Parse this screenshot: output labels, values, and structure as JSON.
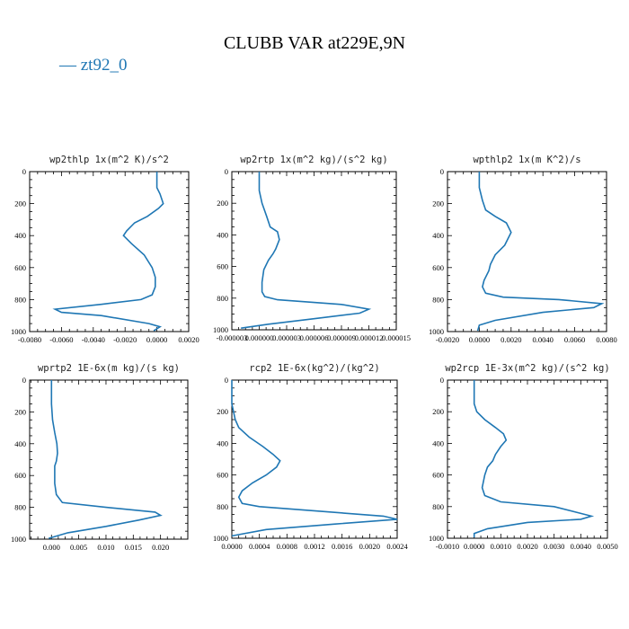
{
  "title": "CLUBB VAR at229E,9N",
  "legend_label": "— zt92_0",
  "colors": {
    "line": "#1f77b4"
  },
  "chart_data": [
    {
      "type": "line",
      "title": "wp2thlp  1x(m^2 K)/s^2",
      "xlim": [
        -0.008,
        0.002
      ],
      "ylim": [
        0,
        1000
      ],
      "y_inverted": true,
      "xticks": [
        -0.008,
        -0.006,
        -0.004,
        -0.002,
        0.0,
        0.002
      ],
      "xticklabels": [
        "-0.0080",
        "-0.0060",
        "-0.0040",
        "-0.0020",
        "0.0000",
        "0.0020"
      ],
      "yticks": [
        0,
        200,
        400,
        600,
        800,
        1000
      ],
      "yticklabels": [
        "0",
        "200",
        "400",
        "600",
        "800",
        "1000"
      ],
      "series": [
        {
          "x": [
            -0.0,
            -0.0,
            0.0002,
            0.0004,
            0.0001,
            -0.0006,
            -0.0014,
            -0.0019,
            -0.0021,
            -0.0016,
            -0.0008,
            -0.0003,
            -0.0001,
            -0.0001,
            -0.0003,
            -0.001,
            -0.0035,
            -0.0064,
            -0.006,
            -0.0035,
            -0.0005,
            0.0002,
            -0.0002
          ],
          "y": [
            0,
            100,
            140,
            200,
            230,
            280,
            320,
            370,
            400,
            450,
            520,
            600,
            660,
            720,
            770,
            800,
            830,
            860,
            880,
            900,
            950,
            970,
            995
          ]
        }
      ]
    },
    {
      "type": "line",
      "title": "wp2rtp  1x(m^2 kg)/(s^2 kg)",
      "xlim": [
        -3e-06,
        1.5e-05
      ],
      "ylim": [
        0,
        1000
      ],
      "y_inverted": true,
      "xticks": [
        -3e-06,
        0.0,
        3e-06,
        6e-06,
        9e-06,
        1.2e-05,
        1.5e-05
      ],
      "xticklabels": [
        "-0.000003",
        "0.000000",
        "0.000003",
        "0.000006",
        "0.000009",
        "0.000012",
        "0.000015"
      ],
      "yticks": [
        0,
        200,
        400,
        600,
        800,
        1000
      ],
      "yticklabels": [
        "0",
        "200",
        "400",
        "600",
        "800",
        "1000"
      ],
      "series": [
        {
          "x": [
            0.0,
            0.0,
            3e-07,
            8e-07,
            1.2e-06,
            2e-06,
            2.2e-06,
            1.8e-06,
            1.5e-06,
            1e-06,
            5e-07,
            3e-07,
            3e-07,
            6e-07,
            2e-06,
            9e-06,
            1.2e-05,
            1.1e-05,
            6e-06,
            1e-06,
            -2e-06
          ],
          "y": [
            0,
            120,
            200,
            280,
            350,
            380,
            430,
            490,
            520,
            560,
            620,
            700,
            760,
            790,
            810,
            840,
            870,
            895,
            930,
            965,
            990
          ]
        }
      ]
    },
    {
      "type": "line",
      "title": "wpthlp2  1x(m K^2)/s",
      "xlim": [
        -0.002,
        0.008
      ],
      "ylim": [
        0,
        1000
      ],
      "y_inverted": true,
      "xticks": [
        -0.002,
        0.0,
        0.002,
        0.004,
        0.006,
        0.008
      ],
      "xticklabels": [
        "-0.0020",
        "0.0000",
        "0.0020",
        "0.0040",
        "0.0060",
        "0.0080"
      ],
      "yticks": [
        0,
        200,
        400,
        600,
        800,
        1000
      ],
      "yticklabels": [
        "0",
        "200",
        "400",
        "600",
        "800",
        "1000"
      ],
      "series": [
        {
          "x": [
            0.0,
            0.0,
            0.0002,
            0.0004,
            0.001,
            0.0017,
            0.002,
            0.0016,
            0.001,
            0.0007,
            0.0006,
            0.0003,
            0.0002,
            0.0004,
            0.0015,
            0.005,
            0.0077,
            0.0072,
            0.004,
            0.001,
            0.0,
            -0.0001
          ],
          "y": [
            0,
            100,
            180,
            240,
            280,
            320,
            380,
            460,
            520,
            580,
            620,
            680,
            720,
            760,
            785,
            800,
            825,
            850,
            880,
            930,
            960,
            995
          ]
        }
      ]
    },
    {
      "type": "line",
      "title": "wprtp2  1E-6x(m kg)/(s kg)",
      "xlim": [
        -0.004,
        0.025
      ],
      "ylim": [
        0,
        1000
      ],
      "y_inverted": true,
      "xticks": [
        0.0,
        0.005,
        0.01,
        0.015,
        0.02
      ],
      "xticklabels": [
        "0.000",
        "0.005",
        "0.010",
        "0.015",
        "0.020"
      ],
      "yticks": [
        0,
        200,
        400,
        600,
        800,
        1000
      ],
      "yticklabels": [
        "0",
        "200",
        "400",
        "600",
        "800",
        "1000"
      ],
      "series": [
        {
          "x": [
            0.0,
            0.0,
            0.0002,
            0.0006,
            0.001,
            0.0011,
            0.0009,
            0.0006,
            0.0006,
            0.0009,
            0.002,
            0.01,
            0.019,
            0.02,
            0.016,
            0.01,
            0.003,
            -0.0005
          ],
          "y": [
            0,
            150,
            250,
            330,
            400,
            460,
            510,
            540,
            650,
            720,
            770,
            800,
            830,
            850,
            880,
            920,
            960,
            995
          ]
        }
      ]
    },
    {
      "type": "line",
      "title": "rcp2  1E-6x(kg^2)/(kg^2)",
      "xlim": [
        0.0,
        0.0024
      ],
      "ylim": [
        0,
        1000
      ],
      "y_inverted": true,
      "xticks": [
        0.0,
        0.0004,
        0.0008,
        0.0012,
        0.0016,
        0.002,
        0.0024
      ],
      "xticklabels": [
        "0.0000",
        "0.0004",
        "0.0008",
        "0.0012",
        "0.0016",
        "0.0020",
        "0.0024"
      ],
      "yticks": [
        0,
        200,
        400,
        600,
        800,
        1000
      ],
      "yticklabels": [
        "0",
        "200",
        "400",
        "600",
        "800",
        "1000"
      ],
      "series": [
        {
          "x": [
            0.0,
            0.0,
            5e-05,
            0.0001,
            0.00025,
            0.00045,
            0.0006,
            0.0007,
            0.00065,
            0.0005,
            0.0003,
            0.00015,
            0.0001,
            0.00015,
            0.0004,
            0.0013,
            0.0022,
            0.0024,
            0.0015,
            0.0005,
            0.0
          ],
          "y": [
            0,
            150,
            250,
            300,
            360,
            420,
            470,
            510,
            550,
            600,
            650,
            700,
            740,
            780,
            800,
            830,
            860,
            880,
            910,
            945,
            985
          ]
        }
      ]
    },
    {
      "type": "line",
      "title": "wp2rcp  1E-3x(m^2 kg)/(s^2 kg)",
      "xlim": [
        -0.001,
        0.005
      ],
      "ylim": [
        0,
        1000
      ],
      "y_inverted": true,
      "xticks": [
        -0.001,
        0.0,
        0.001,
        0.002,
        0.003,
        0.004,
        0.005
      ],
      "xticklabels": [
        "-0.0010",
        "0.0000",
        "0.0010",
        "0.0020",
        "0.0030",
        "0.0040",
        "0.0050"
      ],
      "yticks": [
        0,
        200,
        400,
        600,
        800,
        1000
      ],
      "yticklabels": [
        "0",
        "200",
        "400",
        "600",
        "800",
        "1000"
      ],
      "series": [
        {
          "x": [
            0.0,
            0.0,
            0.0001,
            0.0004,
            0.0008,
            0.0011,
            0.0012,
            0.001,
            0.0008,
            0.0007,
            0.0005,
            0.0004,
            0.0003,
            0.0004,
            0.001,
            0.003,
            0.0044,
            0.004,
            0.002,
            0.0005,
            0.0,
            0.0
          ],
          "y": [
            0,
            150,
            200,
            250,
            300,
            340,
            380,
            420,
            470,
            510,
            550,
            600,
            680,
            730,
            770,
            800,
            860,
            880,
            900,
            940,
            970,
            995
          ]
        }
      ]
    }
  ]
}
